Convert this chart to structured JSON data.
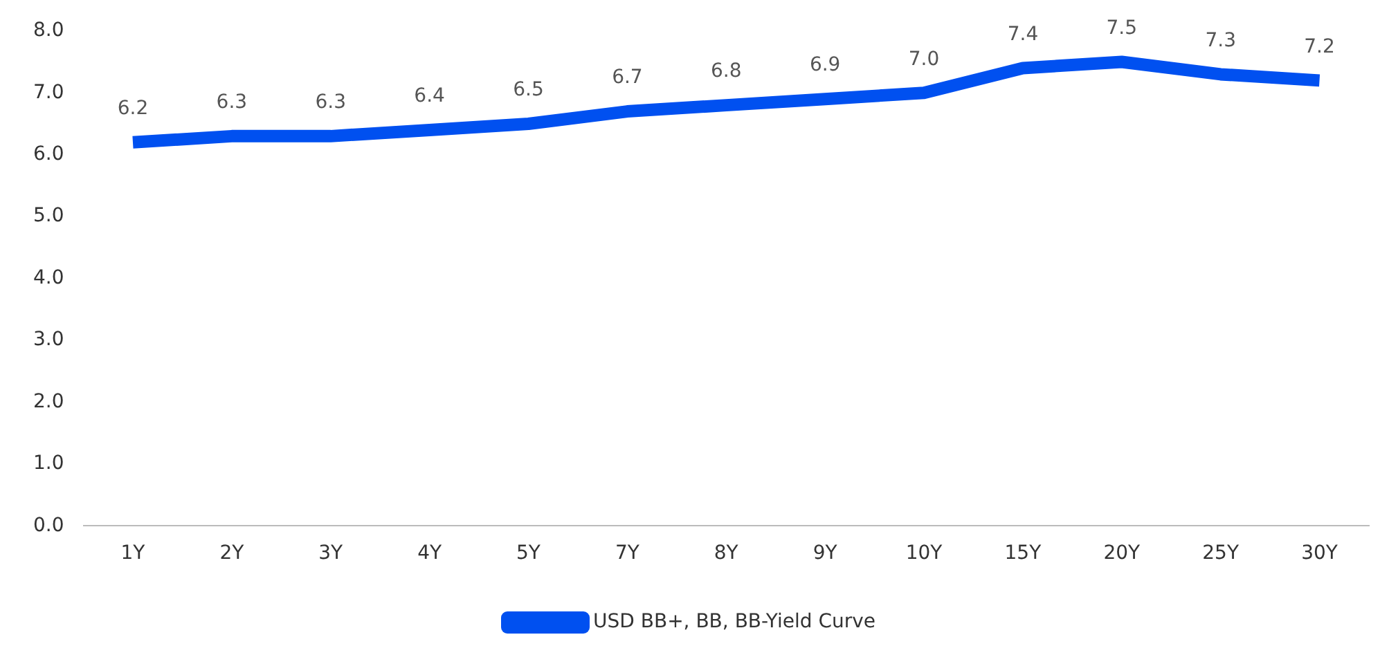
{
  "chart_data": {
    "type": "line",
    "categories": [
      "1Y",
      "2Y",
      "3Y",
      "4Y",
      "5Y",
      "7Y",
      "8Y",
      "9Y",
      "10Y",
      "15Y",
      "20Y",
      "25Y",
      "30Y"
    ],
    "series": [
      {
        "name": "USD BB+, BB, BB-Yield Curve",
        "color": "#0050f0",
        "values": [
          6.2,
          6.3,
          6.3,
          6.4,
          6.5,
          6.7,
          6.8,
          6.9,
          7.0,
          7.4,
          7.5,
          7.3,
          7.2
        ],
        "value_labels": [
          "6.2",
          "6.3",
          "6.3",
          "6.4",
          "6.5",
          "6.7",
          "6.8",
          "6.9",
          "7.0",
          "7.4",
          "7.5",
          "7.3",
          "7.2"
        ]
      }
    ],
    "ylim": [
      0,
      8
    ],
    "yticks": [
      {
        "value": 0,
        "label": "0.0"
      },
      {
        "value": 1,
        "label": "1.0"
      },
      {
        "value": 2,
        "label": "2.0"
      },
      {
        "value": 3,
        "label": "3.0"
      },
      {
        "value": 4,
        "label": "4.0"
      },
      {
        "value": 5,
        "label": "5.0"
      },
      {
        "value": 6,
        "label": "6.0"
      },
      {
        "value": 7,
        "label": "7.0"
      },
      {
        "value": 8,
        "label": "8.0"
      }
    ],
    "grid": false,
    "legend": "bottom",
    "marker": "none",
    "line_style": "solid"
  }
}
